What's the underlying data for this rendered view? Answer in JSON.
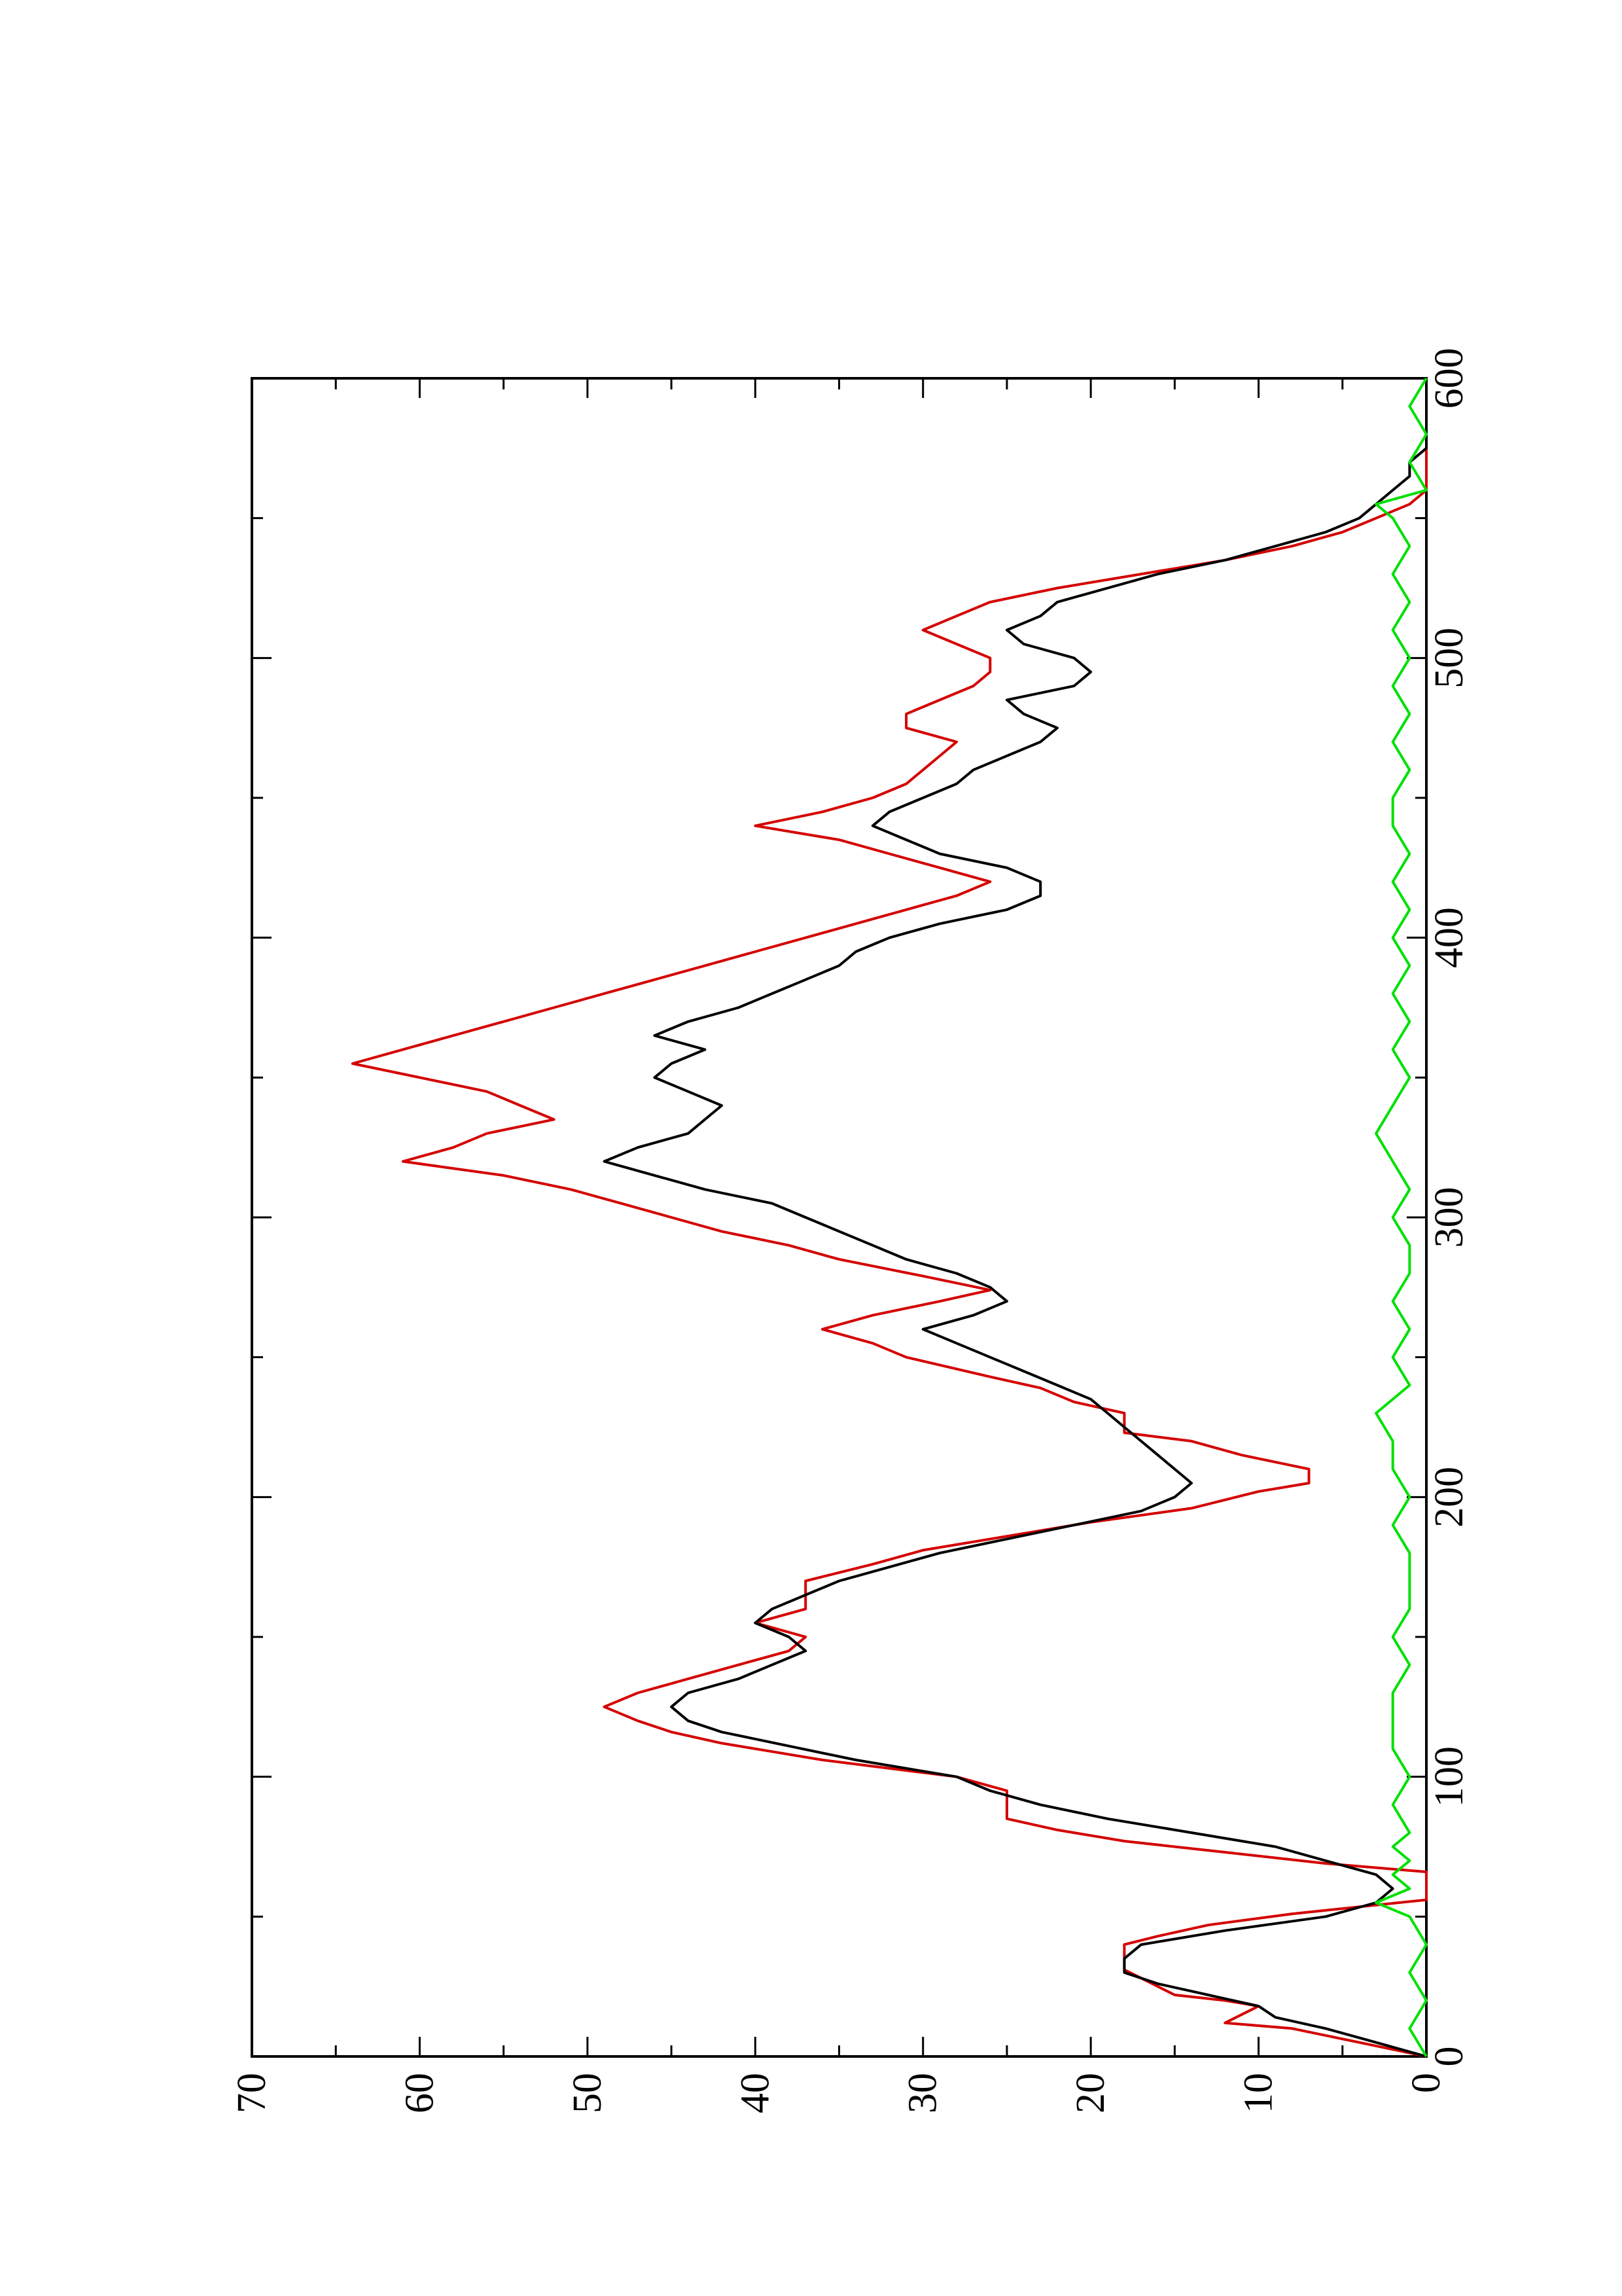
{
  "chart_data": {
    "type": "line",
    "title": "",
    "xlabel": "",
    "ylabel": "",
    "orientation": "rotated-90-ccw",
    "xlim": [
      0,
      600
    ],
    "ylim": [
      0,
      70
    ],
    "x_ticks": [
      0,
      100,
      200,
      300,
      400,
      500,
      600
    ],
    "x_tick_labels": [
      "0",
      "100",
      "200",
      "300",
      "400",
      "500",
      "600"
    ],
    "y_ticks": [
      0,
      10,
      20,
      30,
      40,
      50,
      60,
      70
    ],
    "y_tick_labels": [
      "0",
      "10",
      "20",
      "30",
      "40",
      "50",
      "60",
      "70"
    ],
    "grid": false,
    "legend": "none",
    "series": [
      {
        "color": "#d40000",
        "style": "step",
        "points": [
          [
            0,
            0
          ],
          [
            5,
            4
          ],
          [
            10,
            8
          ],
          [
            12,
            12
          ],
          [
            15,
            11
          ],
          [
            18,
            10
          ],
          [
            20,
            12
          ],
          [
            22,
            15
          ],
          [
            25,
            16
          ],
          [
            28,
            17
          ],
          [
            31,
            18
          ],
          [
            40,
            18
          ],
          [
            43,
            16
          ],
          [
            47,
            13
          ],
          [
            51,
            8
          ],
          [
            56,
            0
          ],
          [
            66,
            0
          ],
          [
            69,
            6
          ],
          [
            73,
            12
          ],
          [
            77,
            18
          ],
          [
            81,
            22
          ],
          [
            85,
            25
          ],
          [
            95,
            25
          ],
          [
            100,
            28
          ],
          [
            106,
            36
          ],
          [
            109,
            39
          ],
          [
            112,
            42
          ],
          [
            116,
            45
          ],
          [
            120,
            47
          ],
          [
            125,
            49
          ],
          [
            130,
            47
          ],
          [
            135,
            44
          ],
          [
            140,
            41
          ],
          [
            145,
            38
          ],
          [
            150,
            37
          ],
          [
            155,
            40
          ],
          [
            160,
            37
          ],
          [
            170,
            37
          ],
          [
            176,
            33
          ],
          [
            181,
            30
          ],
          [
            186,
            25
          ],
          [
            191,
            20
          ],
          [
            196,
            14
          ],
          [
            202,
            10
          ],
          [
            205,
            7
          ],
          [
            210,
            7
          ],
          [
            215,
            11
          ],
          [
            220,
            14
          ],
          [
            223,
            18
          ],
          [
            230,
            18
          ],
          [
            234,
            21
          ],
          [
            239,
            23
          ],
          [
            243,
            26
          ],
          [
            250,
            31
          ],
          [
            255,
            33
          ],
          [
            260,
            36
          ],
          [
            265,
            33
          ],
          [
            270,
            29
          ],
          [
            274,
            26
          ],
          [
            279,
            30
          ],
          [
            285,
            35
          ],
          [
            290,
            38
          ],
          [
            295,
            42
          ],
          [
            300,
            45
          ],
          [
            305,
            48
          ],
          [
            310,
            51
          ],
          [
            315,
            55
          ],
          [
            320,
            61
          ],
          [
            325,
            58
          ],
          [
            330,
            56
          ],
          [
            335,
            52
          ],
          [
            340,
            54
          ],
          [
            345,
            56
          ],
          [
            350,
            60
          ],
          [
            355,
            64
          ],
          [
            360,
            61
          ],
          [
            365,
            58
          ],
          [
            370,
            55
          ],
          [
            375,
            52
          ],
          [
            380,
            49
          ],
          [
            385,
            46
          ],
          [
            390,
            43
          ],
          [
            395,
            40
          ],
          [
            400,
            37
          ],
          [
            405,
            34
          ],
          [
            410,
            31
          ],
          [
            415,
            28
          ],
          [
            420,
            26
          ],
          [
            425,
            29
          ],
          [
            430,
            32
          ],
          [
            435,
            35
          ],
          [
            440,
            40
          ],
          [
            445,
            36
          ],
          [
            450,
            33
          ],
          [
            455,
            31
          ],
          [
            460,
            30
          ],
          [
            465,
            29
          ],
          [
            470,
            28
          ],
          [
            475,
            31
          ],
          [
            480,
            31
          ],
          [
            485,
            29
          ],
          [
            490,
            27
          ],
          [
            495,
            26
          ],
          [
            500,
            26
          ],
          [
            505,
            28
          ],
          [
            510,
            30
          ],
          [
            515,
            28
          ],
          [
            520,
            26
          ],
          [
            525,
            22
          ],
          [
            530,
            17
          ],
          [
            535,
            12
          ],
          [
            540,
            8
          ],
          [
            545,
            5
          ],
          [
            550,
            3
          ],
          [
            555,
            1
          ],
          [
            560,
            0
          ],
          [
            600,
            0
          ]
        ]
      },
      {
        "color": "#000000",
        "style": "line",
        "points": [
          [
            0,
            0
          ],
          [
            5,
            3
          ],
          [
            10,
            6
          ],
          [
            14,
            9
          ],
          [
            18,
            10
          ],
          [
            22,
            13
          ],
          [
            26,
            16
          ],
          [
            30,
            18
          ],
          [
            35,
            18
          ],
          [
            40,
            17
          ],
          [
            45,
            12
          ],
          [
            50,
            6
          ],
          [
            55,
            3
          ],
          [
            60,
            2
          ],
          [
            65,
            3
          ],
          [
            70,
            6
          ],
          [
            75,
            9
          ],
          [
            80,
            14
          ],
          [
            85,
            19
          ],
          [
            90,
            23
          ],
          [
            95,
            26
          ],
          [
            100,
            28
          ],
          [
            106,
            34
          ],
          [
            111,
            38
          ],
          [
            116,
            42
          ],
          [
            120,
            44
          ],
          [
            125,
            45
          ],
          [
            130,
            44
          ],
          [
            135,
            41
          ],
          [
            140,
            39
          ],
          [
            145,
            37
          ],
          [
            150,
            38
          ],
          [
            155,
            40
          ],
          [
            160,
            39
          ],
          [
            165,
            37
          ],
          [
            170,
            35
          ],
          [
            175,
            32
          ],
          [
            180,
            29
          ],
          [
            185,
            25
          ],
          [
            190,
            21
          ],
          [
            195,
            17
          ],
          [
            200,
            15
          ],
          [
            205,
            14
          ],
          [
            210,
            15
          ],
          [
            215,
            16
          ],
          [
            220,
            17
          ],
          [
            225,
            18
          ],
          [
            230,
            19
          ],
          [
            235,
            20
          ],
          [
            240,
            22
          ],
          [
            245,
            24
          ],
          [
            250,
            26
          ],
          [
            255,
            28
          ],
          [
            260,
            30
          ],
          [
            265,
            27
          ],
          [
            270,
            25
          ],
          [
            275,
            26
          ],
          [
            280,
            28
          ],
          [
            285,
            31
          ],
          [
            290,
            33
          ],
          [
            295,
            35
          ],
          [
            300,
            37
          ],
          [
            305,
            39
          ],
          [
            310,
            43
          ],
          [
            315,
            46
          ],
          [
            320,
            49
          ],
          [
            325,
            47
          ],
          [
            330,
            44
          ],
          [
            335,
            43
          ],
          [
            340,
            42
          ],
          [
            345,
            44
          ],
          [
            350,
            46
          ],
          [
            355,
            45
          ],
          [
            360,
            43
          ],
          [
            365,
            46
          ],
          [
            370,
            44
          ],
          [
            375,
            41
          ],
          [
            380,
            39
          ],
          [
            385,
            37
          ],
          [
            390,
            35
          ],
          [
            395,
            34
          ],
          [
            400,
            32
          ],
          [
            405,
            29
          ],
          [
            410,
            25
          ],
          [
            415,
            23
          ],
          [
            420,
            23
          ],
          [
            425,
            25
          ],
          [
            430,
            29
          ],
          [
            435,
            31
          ],
          [
            440,
            33
          ],
          [
            445,
            32
          ],
          [
            450,
            30
          ],
          [
            455,
            28
          ],
          [
            460,
            27
          ],
          [
            465,
            25
          ],
          [
            470,
            23
          ],
          [
            475,
            22
          ],
          [
            480,
            24
          ],
          [
            485,
            25
          ],
          [
            490,
            21
          ],
          [
            495,
            20
          ],
          [
            500,
            21
          ],
          [
            505,
            24
          ],
          [
            510,
            25
          ],
          [
            515,
            23
          ],
          [
            520,
            22
          ],
          [
            525,
            19
          ],
          [
            530,
            16
          ],
          [
            535,
            12
          ],
          [
            540,
            9
          ],
          [
            545,
            6
          ],
          [
            550,
            4
          ],
          [
            555,
            3
          ],
          [
            560,
            2
          ],
          [
            565,
            1
          ],
          [
            570,
            1
          ],
          [
            575,
            0
          ],
          [
            580,
            0
          ],
          [
            590,
            0
          ],
          [
            600,
            0
          ]
        ]
      },
      {
        "color": "#00e000",
        "style": "line",
        "points": [
          [
            0,
            0
          ],
          [
            10,
            1
          ],
          [
            20,
            0
          ],
          [
            30,
            1
          ],
          [
            40,
            0
          ],
          [
            50,
            1
          ],
          [
            55,
            3
          ],
          [
            60,
            1
          ],
          [
            65,
            2
          ],
          [
            70,
            1
          ],
          [
            75,
            2
          ],
          [
            80,
            1
          ],
          [
            90,
            2
          ],
          [
            100,
            1
          ],
          [
            110,
            2
          ],
          [
            120,
            2
          ],
          [
            130,
            2
          ],
          [
            140,
            1
          ],
          [
            150,
            2
          ],
          [
            160,
            1
          ],
          [
            170,
            1
          ],
          [
            180,
            1
          ],
          [
            190,
            2
          ],
          [
            200,
            1
          ],
          [
            210,
            2
          ],
          [
            220,
            2
          ],
          [
            230,
            3
          ],
          [
            240,
            1
          ],
          [
            250,
            2
          ],
          [
            260,
            1
          ],
          [
            270,
            2
          ],
          [
            280,
            1
          ],
          [
            290,
            1
          ],
          [
            300,
            2
          ],
          [
            310,
            1
          ],
          [
            320,
            2
          ],
          [
            330,
            3
          ],
          [
            340,
            2
          ],
          [
            350,
            1
          ],
          [
            360,
            2
          ],
          [
            370,
            1
          ],
          [
            380,
            2
          ],
          [
            390,
            1
          ],
          [
            400,
            2
          ],
          [
            410,
            1
          ],
          [
            420,
            2
          ],
          [
            430,
            1
          ],
          [
            440,
            2
          ],
          [
            450,
            2
          ],
          [
            460,
            1
          ],
          [
            470,
            2
          ],
          [
            480,
            1
          ],
          [
            490,
            2
          ],
          [
            500,
            1
          ],
          [
            510,
            2
          ],
          [
            520,
            1
          ],
          [
            530,
            2
          ],
          [
            540,
            1
          ],
          [
            550,
            2
          ],
          [
            555,
            3
          ],
          [
            560,
            0
          ],
          [
            570,
            1
          ],
          [
            580,
            0
          ],
          [
            590,
            1
          ],
          [
            600,
            0
          ]
        ]
      }
    ]
  }
}
